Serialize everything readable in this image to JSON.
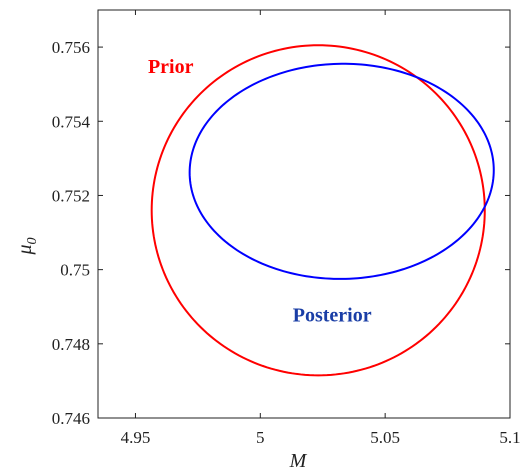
{
  "chart_data": {
    "type": "line",
    "title": "",
    "xlabel": "M",
    "ylabel": "μ",
    "ylabel_subscript": "0",
    "xlim": [
      4.935,
      5.1
    ],
    "ylim": [
      0.746,
      0.757
    ],
    "x_ticks": [
      4.95,
      5,
      5.05,
      5.1
    ],
    "x_tick_labels": [
      "4.95",
      "5",
      "5.05",
      "5.1"
    ],
    "y_ticks": [
      0.746,
      0.748,
      0.75,
      0.752,
      0.754,
      0.756
    ],
    "y_tick_labels": [
      "0.746",
      "0.748",
      "0.75",
      "0.752",
      "0.754",
      "0.756"
    ],
    "grid": false,
    "annotations": [
      {
        "text": "Prior",
        "x": 4.955,
        "y": 0.7553,
        "color": "#ff0000"
      },
      {
        "text": "Posterior",
        "x": 5.013,
        "y": 0.7486,
        "color": "#1a3ea6"
      }
    ],
    "series": [
      {
        "name": "Prior",
        "color": "#ff0000",
        "shape": "ellipse",
        "center": [
          5.0232,
          0.7516
        ],
        "semi_axes": [
          0.0667,
          0.00445
        ],
        "angle_deg": 0
      },
      {
        "name": "Posterior",
        "color": "#0000ff",
        "shape": "ellipse",
        "center": [
          5.0326,
          0.75265
        ],
        "semi_axes": [
          0.0609,
          0.0029
        ],
        "angle_deg": 0.0296
      }
    ]
  }
}
